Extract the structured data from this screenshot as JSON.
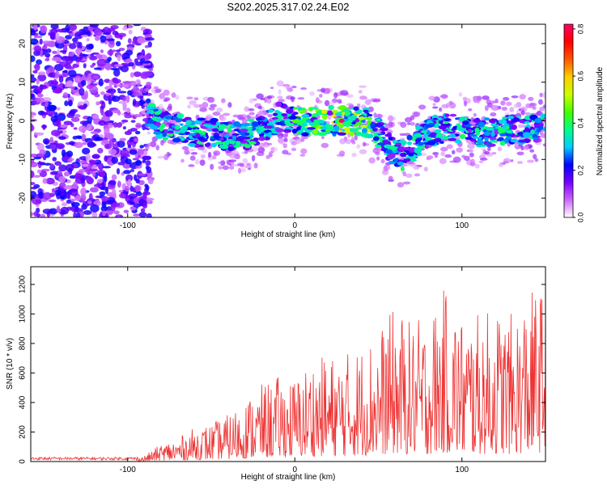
{
  "title": "S202.2025.317.02.24.E02",
  "chart_data": [
    {
      "type": "heatmap",
      "xlabel": "Height of straight line (km)",
      "ylabel": "Frequency (Hz)",
      "xlim": [
        -158,
        150
      ],
      "ylim": [
        -25,
        25
      ],
      "xticks": [
        -100,
        0,
        100
      ],
      "yticks": [
        -20,
        -10,
        0,
        10,
        20
      ],
      "colorbar": {
        "label": "Normalized spectral amplitude",
        "range": [
          0,
          0.82
        ],
        "ticks": [
          0.0,
          0.2,
          0.4,
          0.6,
          0.8
        ],
        "colors": [
          "#ffffff",
          "#cc66ff",
          "#7700ff",
          "#0000ff",
          "#00ccff",
          "#00ff88",
          "#44ff00",
          "#ccff00",
          "#ffcc00",
          "#ff5500",
          "#ff0000",
          "#ff0066"
        ]
      },
      "ridge": {
        "x": [
          -88,
          -80,
          -70,
          -60,
          -50,
          -40,
          -30,
          -20,
          -10,
          0,
          10,
          20,
          30,
          40,
          45,
          50,
          55,
          60,
          65,
          70,
          75,
          80,
          90,
          100,
          110,
          120,
          130,
          140,
          150
        ],
        "y": [
          2,
          -1,
          -2,
          -3,
          -3,
          -4,
          -4,
          -2,
          1,
          0,
          0,
          0,
          0,
          0,
          -1,
          -3,
          -6,
          -8,
          -9,
          -7,
          -5,
          -3,
          -2,
          -2,
          -3,
          -3,
          -2,
          -2,
          -2
        ]
      }
    },
    {
      "type": "line",
      "xlabel": "Height of straight line (km)",
      "ylabel": "SNR (10 * v/v)",
      "xlim": [
        -158,
        150
      ],
      "ylim": [
        0,
        1320
      ],
      "xticks": [
        -100,
        0,
        100
      ],
      "yticks": [
        0,
        200,
        400,
        600,
        800,
        1000,
        1200
      ],
      "color": "#ee3333",
      "envelope": {
        "x": [
          -158,
          -100,
          -90,
          -80,
          -70,
          -60,
          -50,
          -40,
          -30,
          -20,
          -10,
          0,
          10,
          20,
          30,
          40,
          50,
          60,
          70,
          80,
          90,
          100,
          110,
          120,
          130,
          140,
          150
        ],
        "y": [
          28,
          28,
          40,
          120,
          160,
          230,
          260,
          320,
          420,
          520,
          580,
          570,
          700,
          720,
          740,
          800,
          900,
          1050,
          950,
          1000,
          1180,
          1000,
          1000,
          1050,
          1000,
          1150,
          1200
        ]
      }
    }
  ]
}
